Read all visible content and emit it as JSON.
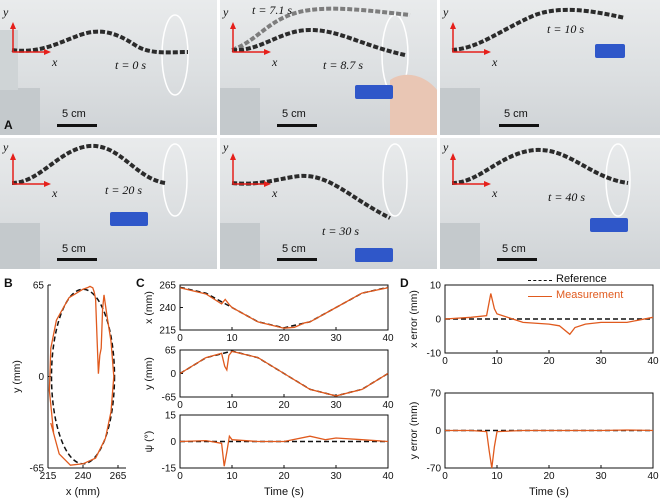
{
  "panelA": {
    "label": "A",
    "scale_bar": "5 cm",
    "axis_x": "x",
    "axis_y": "y",
    "frames": [
      {
        "times": [
          "t = 0 s"
        ]
      },
      {
        "times": [
          "t = 7.1 s",
          "t = 8.7 s"
        ]
      },
      {
        "times": [
          "t = 10 s"
        ]
      },
      {
        "times": [
          "t = 20 s"
        ]
      },
      {
        "times": [
          "t = 30 s"
        ]
      },
      {
        "times": [
          "t = 40 s"
        ]
      }
    ]
  },
  "panelB": {
    "label": "B"
  },
  "panelC": {
    "label": "C"
  },
  "panelD": {
    "label": "D"
  },
  "legend": {
    "reference": "Reference",
    "measurement": "Measurement"
  },
  "colors": {
    "reference": "#111111",
    "measurement": "#e05a1e",
    "robot": "#2b2b2b",
    "ellipse": "#ffffff"
  },
  "chart_data": [
    {
      "id": "B",
      "type": "line",
      "xlabel": "x (mm)",
      "ylabel": "y (mm)",
      "xlim": [
        215,
        265
      ],
      "ylim": [
        -65,
        65
      ],
      "xticks": [
        "215",
        "240",
        "265"
      ],
      "yticks": [
        "65",
        "0",
        "-65"
      ],
      "series": [
        {
          "name": "Reference",
          "shape": "ellipse",
          "center": [
            240,
            0
          ],
          "radii": [
            22.5,
            62
          ]
        },
        {
          "name": "Measurement",
          "x": [
            217,
            223,
            231,
            240,
            249,
            256,
            260,
            262,
            260,
            257,
            255,
            254,
            253,
            252,
            251,
            250,
            249,
            248,
            247,
            245,
            243,
            240,
            230,
            221,
            217,
            216,
            219
          ],
          "y": [
            -33,
            -55,
            -63,
            -62,
            -58,
            -44,
            -25,
            0,
            25,
            44,
            58,
            48,
            20,
            15,
            2,
            28,
            55,
            60,
            63,
            64,
            63,
            62,
            56,
            40,
            20,
            -10,
            -40
          ]
        }
      ]
    },
    {
      "id": "C-x",
      "type": "line",
      "xlabel": "",
      "ylabel": "x (mm)",
      "xlim": [
        0,
        40
      ],
      "ylim": [
        215,
        265
      ],
      "xticks": [
        "0",
        "10",
        "20",
        "30",
        "40"
      ],
      "yticks": [
        "265",
        "240",
        "215"
      ],
      "series": [
        {
          "name": "Reference",
          "x": [
            0,
            5,
            10,
            15,
            20,
            25,
            30,
            35,
            40
          ],
          "y": [
            262.5,
            255.9,
            240,
            224.1,
            217.5,
            224.1,
            240,
            255.9,
            262.5
          ]
        },
        {
          "name": "Measurement",
          "x": [
            0,
            5,
            8,
            8.7,
            9.5,
            10,
            15,
            20,
            22,
            24,
            25,
            30,
            35,
            40
          ],
          "y": [
            262,
            255,
            244,
            249,
            243,
            240,
            224,
            217,
            218,
            223,
            224,
            240,
            256,
            262
          ]
        }
      ]
    },
    {
      "id": "C-y",
      "type": "line",
      "xlabel": "",
      "ylabel": "y (mm)",
      "xlim": [
        0,
        40
      ],
      "ylim": [
        -65,
        65
      ],
      "xticks": [
        "0",
        "10",
        "20",
        "30",
        "40"
      ],
      "yticks": [
        "65",
        "0",
        "-65"
      ],
      "series": [
        {
          "name": "Reference",
          "x": [
            0,
            5,
            10,
            15,
            20,
            25,
            30,
            35,
            40
          ],
          "y": [
            0,
            43.8,
            62,
            43.8,
            0,
            -43.8,
            -62,
            -43.8,
            0
          ]
        },
        {
          "name": "Measurement",
          "x": [
            0,
            5,
            8,
            8.6,
            9,
            9.4,
            10,
            15,
            20,
            25,
            30,
            35,
            40
          ],
          "y": [
            0,
            44,
            56,
            20,
            10,
            50,
            61,
            44,
            0,
            -44,
            -62,
            -44,
            0
          ]
        }
      ]
    },
    {
      "id": "C-psi",
      "type": "line",
      "xlabel": "Time (s)",
      "ylabel": "ψ (°)",
      "xlim": [
        0,
        40
      ],
      "ylim": [
        -15,
        15
      ],
      "xticks": [
        "0",
        "10",
        "20",
        "30",
        "40"
      ],
      "yticks": [
        "15",
        "0",
        "-15"
      ],
      "series": [
        {
          "name": "Reference",
          "x": [
            0,
            40
          ],
          "y": [
            0,
            0
          ]
        },
        {
          "name": "Measurement",
          "x": [
            0,
            5,
            8,
            8.5,
            9,
            9.5,
            10,
            15,
            20,
            25,
            28,
            30,
            35,
            40
          ],
          "y": [
            0,
            0.5,
            -1,
            -14,
            -6,
            3,
            1,
            0,
            0,
            3,
            1,
            2,
            1,
            0
          ]
        }
      ]
    },
    {
      "id": "D-x",
      "type": "line",
      "xlabel": "",
      "ylabel": "x error (mm)",
      "xlim": [
        0,
        40
      ],
      "ylim": [
        -10,
        10
      ],
      "xticks": [
        "0",
        "10",
        "20",
        "30",
        "40"
      ],
      "yticks": [
        "10",
        "0",
        "-10"
      ],
      "series": [
        {
          "name": "Reference",
          "x": [
            0,
            40
          ],
          "y": [
            0,
            0
          ]
        },
        {
          "name": "Measurement",
          "x": [
            0,
            5,
            8,
            8.8,
            9.5,
            10,
            12,
            15,
            20,
            22,
            24,
            25,
            27,
            30,
            35,
            40
          ],
          "y": [
            0,
            0.5,
            1,
            7.5,
            3,
            1.5,
            0.5,
            -1,
            -1.5,
            -2,
            -4.5,
            -2.5,
            -1.5,
            -1,
            -1,
            0.5
          ]
        }
      ]
    },
    {
      "id": "D-y",
      "type": "line",
      "xlabel": "Time (s)",
      "ylabel": "y error (mm)",
      "xlim": [
        0,
        40
      ],
      "ylim": [
        -70,
        70
      ],
      "xticks": [
        "0",
        "10",
        "20",
        "30",
        "40"
      ],
      "yticks": [
        "70",
        "0",
        "-70"
      ],
      "series": [
        {
          "name": "Reference",
          "x": [
            0,
            40
          ],
          "y": [
            0,
            0
          ]
        },
        {
          "name": "Measurement",
          "x": [
            0,
            5,
            8,
            8.5,
            9,
            9.5,
            10,
            15,
            20,
            25,
            30,
            35,
            40
          ],
          "y": [
            0,
            0,
            -2,
            -38,
            -70,
            -30,
            -2,
            0,
            0,
            0,
            0,
            1,
            0
          ]
        }
      ]
    }
  ]
}
